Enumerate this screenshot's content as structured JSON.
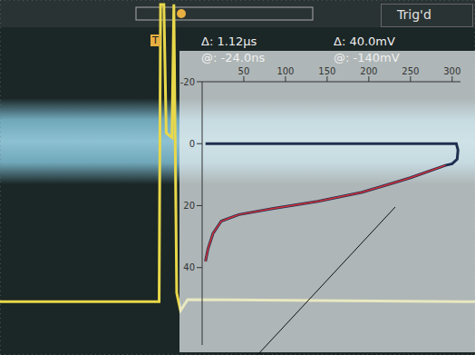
{
  "chart_data": [
    {
      "type": "line",
      "tick_labels": false,
      "grid": true,
      "xlim": [
        0,
        10
      ],
      "ylim": [
        -4,
        4
      ],
      "xticks": [
        0,
        1,
        2,
        3,
        4,
        5,
        6,
        7,
        8,
        9,
        10
      ],
      "yticks": [
        -4,
        -3,
        -2,
        -1,
        0,
        1,
        2,
        3,
        4
      ],
      "annotations": [
        "Trig'd",
        "T",
        "Δ: 1.12μs",
        "Δ: 40.0mV",
        "@: -24.0ns",
        "@: -140mV"
      ],
      "series": [
        {
          "color": "#e8d84a",
          "x": [
            0,
            3.35,
            3.38,
            3.45,
            3.5,
            3.62,
            3.66,
            3.72,
            3.8,
            3.95,
            10
          ],
          "values": [
            -2.8,
            -2.8,
            3.9,
            3.9,
            1.0,
            0.9,
            3.9,
            -2.6,
            -3.0,
            -2.75,
            -2.8
          ]
        }
      ]
    },
    {
      "type": "line",
      "xlim": [
        0,
        310
      ],
      "ylim": [
        -20,
        65
      ],
      "xticks": [
        50,
        100,
        150,
        200,
        250,
        300
      ],
      "yticks": [
        -20,
        0,
        20,
        40
      ],
      "series": [
        {
          "color": "#1f2f4f",
          "x": [
            4,
            50,
            100,
            150,
            200,
            250,
            300,
            305,
            307,
            306,
            300,
            292,
            250,
            234,
            192,
            139,
            86,
            44,
            23,
            13,
            7,
            4
          ],
          "values": [
            0,
            0,
            0,
            0,
            0,
            0,
            0,
            0,
            2,
            5,
            6.5,
            7,
            11,
            12.3,
            15.7,
            18.6,
            20.9,
            22.9,
            25,
            29,
            34,
            38
          ]
        },
        {
          "color": "#d0303a",
          "x": [
            292,
            250,
            234,
            192,
            139,
            86,
            44,
            23,
            13,
            7,
            4
          ],
          "values": [
            7,
            11,
            12.3,
            15.7,
            18.6,
            20.9,
            22.9,
            25,
            29,
            34,
            38
          ]
        }
      ]
    }
  ]
}
